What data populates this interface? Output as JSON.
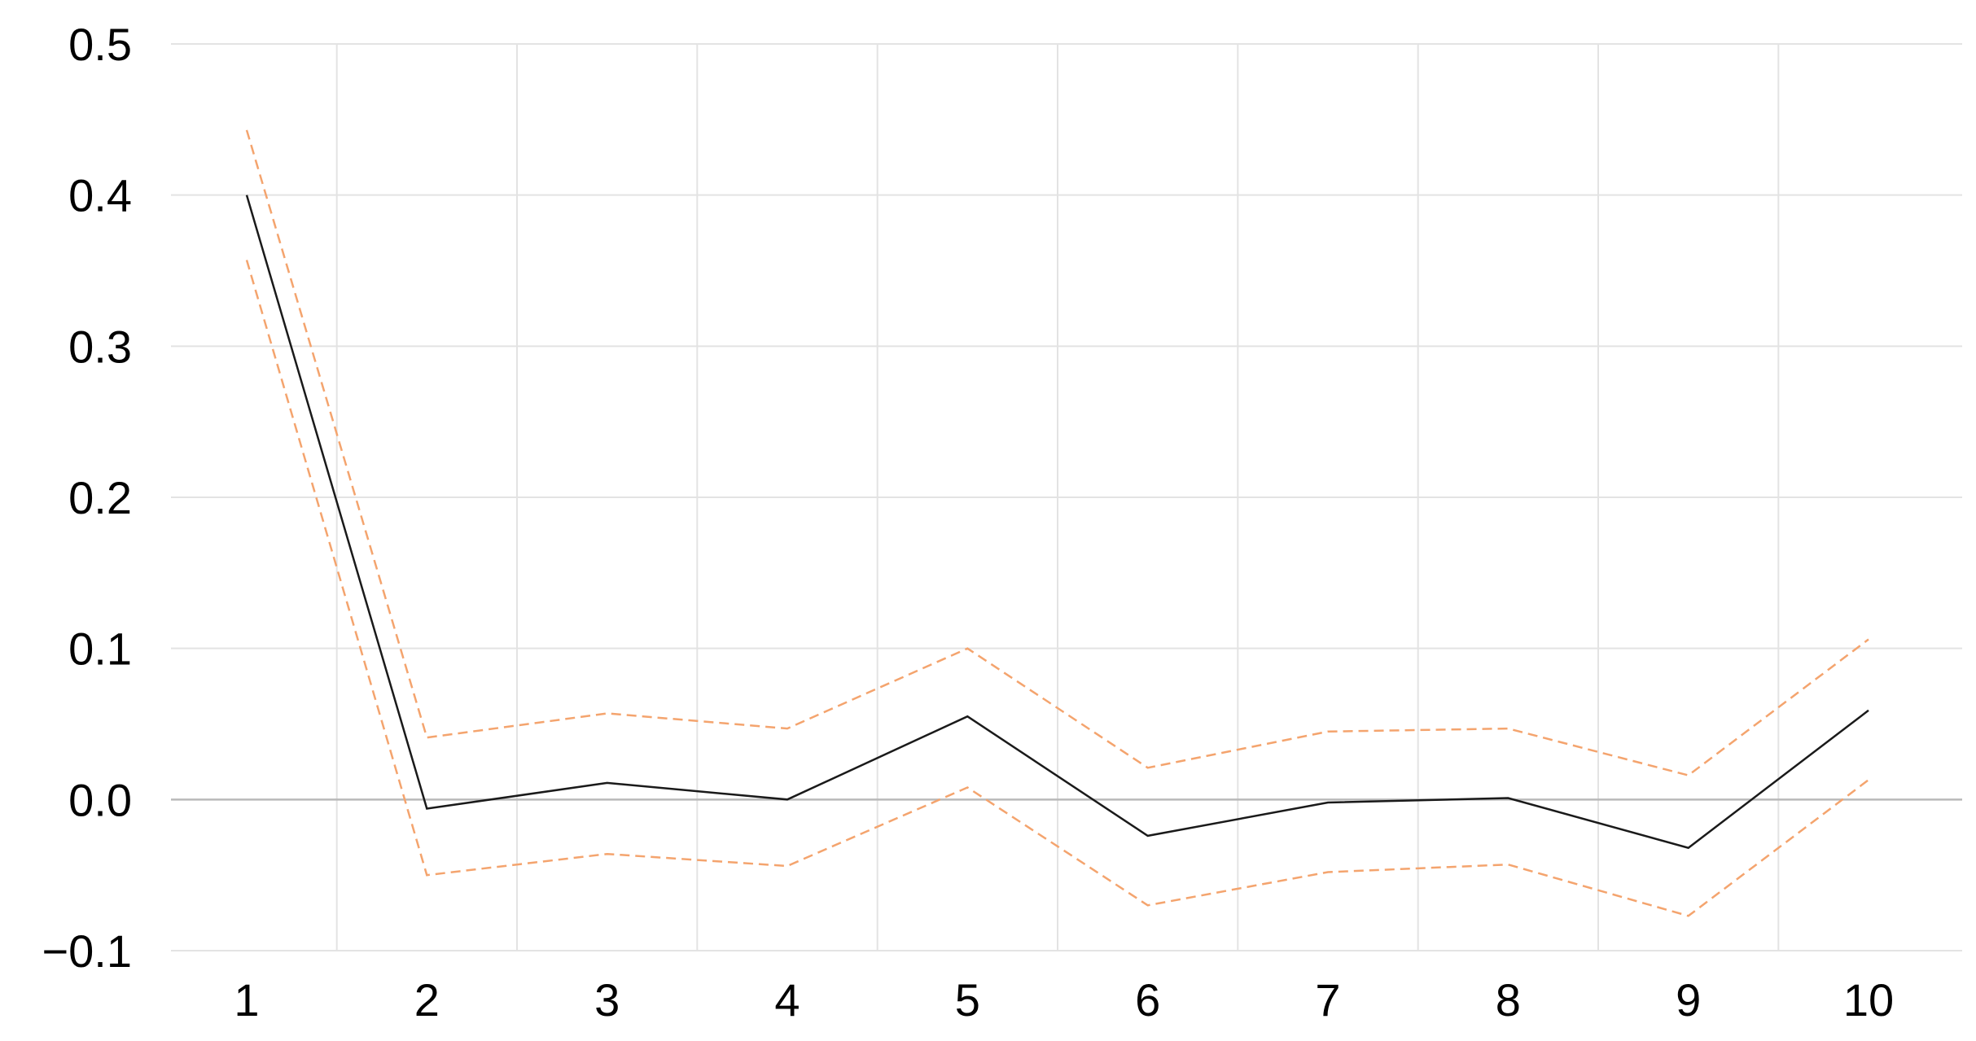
{
  "chart_data": {
    "type": "line",
    "title": "",
    "xlabel": "",
    "ylabel": "",
    "x": [
      1,
      2,
      3,
      4,
      5,
      6,
      7,
      8,
      9,
      10
    ],
    "ylim": [
      -0.1,
      0.5
    ],
    "y_ticks": [
      "−0.1",
      "0.0",
      "0.1",
      "0.2",
      "0.3",
      "0.4",
      "0.5"
    ],
    "y_tick_values": [
      -0.1,
      0.0,
      0.1,
      0.2,
      0.3,
      0.4,
      0.5
    ],
    "x_ticks": [
      "1",
      "2",
      "3",
      "4",
      "5",
      "6",
      "7",
      "8",
      "9",
      "10"
    ],
    "grid": true,
    "legend": "none",
    "series": [
      {
        "role": "estimate",
        "color": "#1a1a1a",
        "style": "solid",
        "values": [
          0.4,
          -0.006,
          0.011,
          0.0,
          0.055,
          -0.024,
          -0.002,
          0.001,
          -0.032,
          0.059
        ]
      },
      {
        "role": "upper-bound",
        "color": "#f4a46e",
        "style": "dashed",
        "values": [
          0.443,
          0.041,
          0.057,
          0.047,
          0.1,
          0.021,
          0.045,
          0.047,
          0.016,
          0.106
        ]
      },
      {
        "role": "lower-bound",
        "color": "#f4a46e",
        "style": "dashed",
        "values": [
          0.357,
          -0.05,
          -0.036,
          -0.044,
          0.008,
          -0.07,
          -0.048,
          -0.043,
          -0.077,
          0.013
        ]
      }
    ],
    "colors": {
      "grid": "#e3e3e3",
      "zero_line": "#b9b9b9"
    }
  }
}
